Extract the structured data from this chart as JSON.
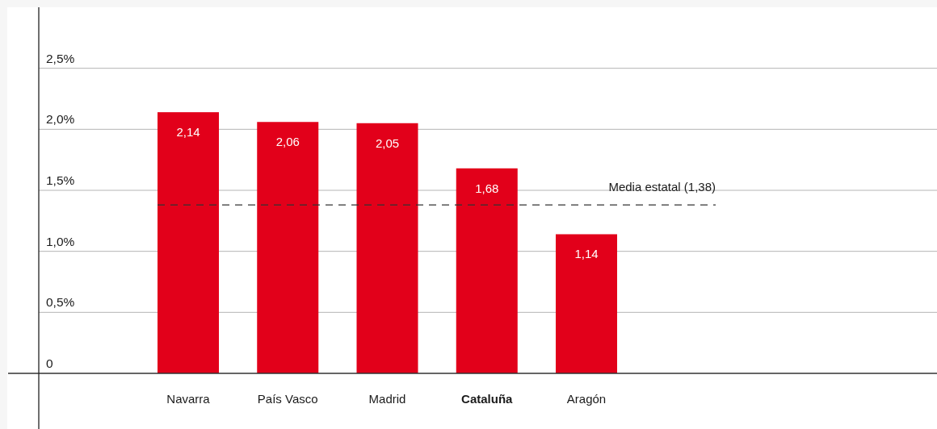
{
  "chart_data": {
    "type": "bar",
    "categories": [
      "Navarra",
      "País Vasco",
      "Madrid",
      "Cataluña",
      "Aragón"
    ],
    "values": [
      2.14,
      2.06,
      2.05,
      1.68,
      1.14
    ],
    "color": "#e2001a",
    "value_labels": [
      "2,14",
      "2,06",
      "2,05",
      "1,68",
      "1,14"
    ],
    "ylim": [
      0,
      3
    ],
    "yticks": [
      0,
      {
        "value": 0.5,
        "label": "0,5%"
      },
      {
        "value": 1,
        "label": "1,0%"
      },
      {
        "value": 1.5,
        "label": "1,5%"
      },
      {
        "value": 2,
        "label": "2,0%"
      },
      {
        "value": 2.5,
        "label": "2,5%"
      }
    ],
    "grid": "y",
    "ref_lines": [
      {
        "axis": "y",
        "value": 1.38,
        "label": "Media estatal (1,38)",
        "color": "#333333",
        "line_style": "dashed"
      }
    ]
  }
}
